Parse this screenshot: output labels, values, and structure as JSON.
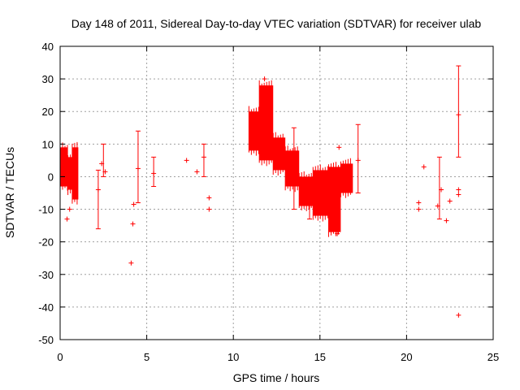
{
  "chart_data": {
    "type": "scatter",
    "title": "Day 148 of 2011, Sidereal Day-to-day VTEC variation (SDTVAR) for receiver ulab",
    "xlabel": "GPS time / hours",
    "ylabel": "SDTVAR / TECUs",
    "xlim": [
      0,
      25
    ],
    "ylim": [
      -50,
      40
    ],
    "xticks": [
      0,
      5,
      10,
      15,
      20,
      25
    ],
    "yticks": [
      -50,
      -40,
      -30,
      -20,
      -10,
      0,
      10,
      20,
      30,
      40
    ],
    "grid": true,
    "series_color": "#ff0000",
    "series": [
      {
        "name": "SDTVAR",
        "dense_bands": [
          {
            "x": [
              0.0,
              0.45
            ],
            "lo": -3,
            "hi": 9
          },
          {
            "x": [
              0.45,
              0.7
            ],
            "lo": -4,
            "hi": 6
          },
          {
            "x": [
              0.7,
              1.05
            ],
            "lo": -7,
            "hi": 9
          },
          {
            "x": [
              10.9,
              11.5
            ],
            "lo": 8,
            "hi": 20
          },
          {
            "x": [
              11.5,
              12.3
            ],
            "lo": 5,
            "hi": 28
          },
          {
            "x": [
              12.3,
              13.0
            ],
            "lo": 2,
            "hi": 12
          },
          {
            "x": [
              13.0,
              13.8
            ],
            "lo": -3,
            "hi": 8
          },
          {
            "x": [
              13.8,
              14.6
            ],
            "lo": -9,
            "hi": 0
          },
          {
            "x": [
              14.6,
              15.5
            ],
            "lo": -12,
            "hi": 2
          },
          {
            "x": [
              15.5,
              16.2
            ],
            "lo": -17,
            "hi": 3
          },
          {
            "x": [
              16.2,
              16.9
            ],
            "lo": -5,
            "hi": 4
          }
        ],
        "error_bars": [
          {
            "x": 2.2,
            "lo": -16,
            "hi": 2
          },
          {
            "x": 2.5,
            "lo": 0,
            "hi": 10
          },
          {
            "x": 4.5,
            "lo": -8,
            "hi": 14
          },
          {
            "x": 5.4,
            "lo": -3,
            "hi": 6
          },
          {
            "x": 8.3,
            "lo": 0,
            "hi": 10
          },
          {
            "x": 13.5,
            "lo": -10,
            "hi": 15
          },
          {
            "x": 14.4,
            "lo": -13,
            "hi": -6
          },
          {
            "x": 17.2,
            "lo": -5,
            "hi": 16
          },
          {
            "x": 21.9,
            "lo": -13,
            "hi": 6
          },
          {
            "x": 23.0,
            "lo": 6,
            "hi": 34
          }
        ],
        "points": [
          {
            "x": 0.4,
            "y": -13
          },
          {
            "x": 0.55,
            "y": -10
          },
          {
            "x": 2.2,
            "y": -4
          },
          {
            "x": 2.4,
            "y": 4
          },
          {
            "x": 2.6,
            "y": 1.5
          },
          {
            "x": 4.1,
            "y": -26.5
          },
          {
            "x": 4.2,
            "y": -14.5
          },
          {
            "x": 4.25,
            "y": -8.5
          },
          {
            "x": 4.5,
            "y": 2.5
          },
          {
            "x": 5.4,
            "y": 1
          },
          {
            "x": 7.3,
            "y": 5
          },
          {
            "x": 7.9,
            "y": 1.5
          },
          {
            "x": 8.3,
            "y": 6
          },
          {
            "x": 8.6,
            "y": -6.5
          },
          {
            "x": 8.6,
            "y": -10
          },
          {
            "x": 11.8,
            "y": 30
          },
          {
            "x": 16.1,
            "y": 9
          },
          {
            "x": 16.0,
            "y": -17.5
          },
          {
            "x": 17.2,
            "y": 5
          },
          {
            "x": 20.7,
            "y": -8
          },
          {
            "x": 20.7,
            "y": -10
          },
          {
            "x": 21.0,
            "y": 3
          },
          {
            "x": 21.8,
            "y": -9
          },
          {
            "x": 22.0,
            "y": -4
          },
          {
            "x": 22.3,
            "y": -13.5
          },
          {
            "x": 22.5,
            "y": -7.5
          },
          {
            "x": 23.0,
            "y": 19
          },
          {
            "x": 23.0,
            "y": -4
          },
          {
            "x": 23.0,
            "y": -5.5
          },
          {
            "x": 23.0,
            "y": -42.5
          }
        ]
      }
    ]
  }
}
